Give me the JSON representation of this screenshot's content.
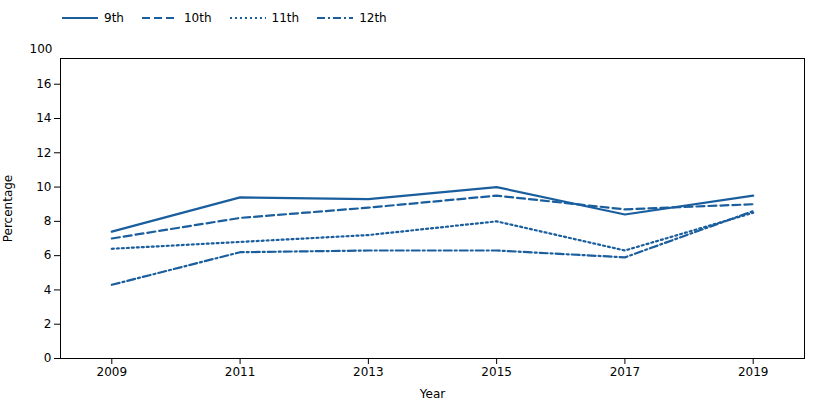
{
  "chart_data": {
    "type": "line",
    "x": [
      2009,
      2011,
      2013,
      2015,
      2017,
      2019
    ],
    "series": [
      {
        "name": "9th",
        "color": "#1a5e9e",
        "line_style": "solid",
        "values": [
          7.4,
          9.4,
          9.3,
          10.0,
          8.4,
          9.5
        ]
      },
      {
        "name": "10th",
        "color": "#1a5e9e",
        "line_style": "dashed",
        "values": [
          7.0,
          8.2,
          8.8,
          9.5,
          8.7,
          9.0
        ]
      },
      {
        "name": "11th",
        "color": "#1a5e9e",
        "line_style": "dotted",
        "values": [
          6.4,
          6.8,
          7.2,
          8.0,
          6.3,
          8.5
        ]
      },
      {
        "name": "12th",
        "color": "#1a5e9e",
        "line_style": "dashdot",
        "values": [
          4.3,
          6.2,
          6.3,
          6.3,
          5.9,
          8.6
        ]
      }
    ],
    "xlabel": "Year",
    "ylabel": "Percentage",
    "xlim": [
      2008.2,
      2019.8
    ],
    "xticks": [
      2009,
      2011,
      2013,
      2015,
      2017,
      2019
    ],
    "ylim": [
      0,
      17.5
    ],
    "yticks": [
      0,
      2,
      4,
      6,
      8,
      10,
      12,
      14,
      16
    ],
    "grid": false,
    "legend": "upper left",
    "annotations": [
      {
        "text": "100"
      }
    ]
  }
}
